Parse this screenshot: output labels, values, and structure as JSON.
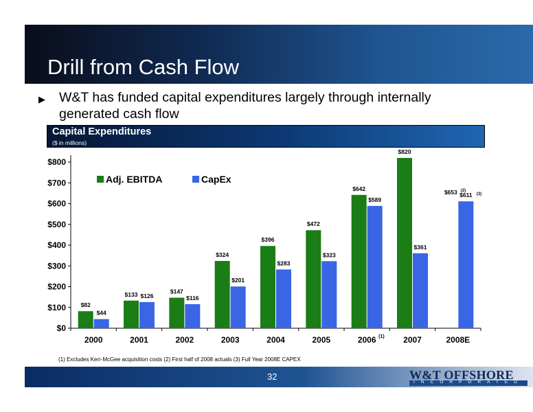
{
  "slide": {
    "title": "Drill from Cash Flow",
    "bullet": "W&T has funded capital expenditures largely through internally generated cash flow",
    "banner_title": "Capital Expenditures",
    "banner_subtitle": "($ in millions)",
    "footnote": "(1) Excludes Kerr-McGee acquisition costs  (2) First half of 2008 actuals  (3) Full Year 2008E CAPEX",
    "page_number": "32",
    "logo_name": "W&T OFFSHORE",
    "logo_tagline": "INCORPORATED"
  },
  "chart_data": {
    "type": "bar",
    "categories": [
      "2000",
      "2001",
      "2002",
      "2003",
      "2004",
      "2005",
      "2006",
      "2007",
      "2008E"
    ],
    "category_superscripts": [
      "",
      "",
      "",
      "",
      "",
      "",
      "(1)",
      "",
      ""
    ],
    "series": [
      {
        "name": "Adj. EBITDA",
        "color": "#1a7d16",
        "values": [
          82,
          133,
          147,
          324,
          396,
          472,
          642,
          820,
          null
        ]
      },
      {
        "name": "CapEx",
        "color": "#3a66e6",
        "values": [
          44,
          126,
          116,
          201,
          283,
          323,
          589,
          361,
          611
        ]
      }
    ],
    "data_labels": [
      [
        "$82",
        "$133",
        "$147",
        "$324",
        "$396",
        "$472",
        "$642",
        "$820",
        ""
      ],
      [
        "$44",
        "$126",
        "$116",
        "$201",
        "$283",
        "$323",
        "$589",
        "$361",
        "$611"
      ]
    ],
    "annotations": [
      {
        "category": "2008E",
        "text": "$653",
        "superscript": "(2)"
      },
      {
        "category": "2008E",
        "series": "CapEx",
        "superscript": "(3)"
      }
    ],
    "y_ticks": [
      "$0",
      "$100",
      "$200",
      "$300",
      "$400",
      "$500",
      "$600",
      "$700",
      "$800"
    ],
    "ylim": [
      0,
      820
    ],
    "legend_position": "top-left",
    "grid": false
  }
}
